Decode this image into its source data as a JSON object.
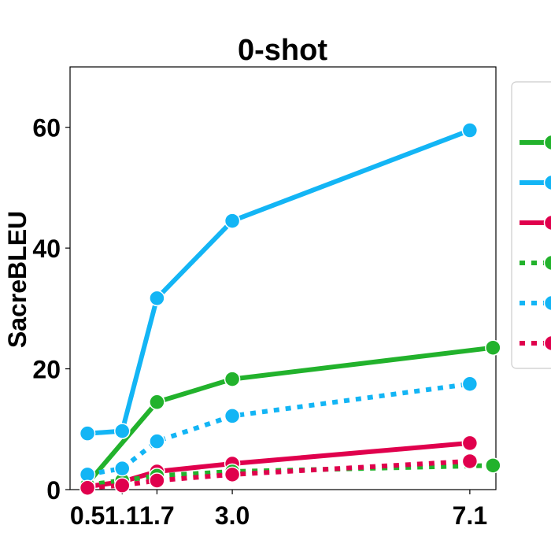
{
  "chart_data": {
    "type": "line",
    "title": "0-shot",
    "xlabel": "",
    "ylabel": "SacreBLEU",
    "xlim": [
      0.2,
      7.55
    ],
    "ylim": [
      0,
      70
    ],
    "xticks": [
      {
        "value": 0.5,
        "label": "0.5"
      },
      {
        "value": 1.1,
        "label": "1.1"
      },
      {
        "value": 1.7,
        "label": "1.7"
      },
      {
        "value": 3.0,
        "label": "3.0"
      },
      {
        "value": 7.1,
        "label": "7.1"
      }
    ],
    "yticks": [
      {
        "value": 0,
        "label": "0"
      },
      {
        "value": 20,
        "label": "20"
      },
      {
        "value": 40,
        "label": "40"
      },
      {
        "value": 60,
        "label": "60"
      }
    ],
    "grid": false,
    "legend": "right, clipped",
    "series": [
      {
        "color": "#22b22c",
        "style": "solid",
        "x": [
          0.5,
          1.7,
          3.0,
          7.5
        ],
        "y": [
          1.0,
          14.5,
          18.3,
          23.5
        ]
      },
      {
        "color": "#13b5f5",
        "style": "solid",
        "x": [
          0.5,
          1.1,
          1.7,
          3.0,
          7.1
        ],
        "y": [
          9.3,
          9.7,
          31.7,
          44.5,
          59.5
        ]
      },
      {
        "color": "#e0004d",
        "style": "solid",
        "x": [
          0.5,
          1.1,
          1.7,
          3.0,
          7.1
        ],
        "y": [
          0.5,
          1.3,
          3.0,
          4.3,
          7.7
        ]
      },
      {
        "color": "#22b22c",
        "style": "dotted",
        "x": [
          0.5,
          1.1,
          1.7,
          3.0,
          7.5
        ],
        "y": [
          0.8,
          1.5,
          2.3,
          3.0,
          4.0
        ]
      },
      {
        "color": "#13b5f5",
        "style": "dotted",
        "x": [
          0.5,
          1.1,
          1.7,
          3.0,
          7.1
        ],
        "y": [
          2.5,
          3.5,
          8.0,
          12.2,
          17.5
        ]
      },
      {
        "color": "#e0004d",
        "style": "dotted",
        "x": [
          0.5,
          1.1,
          1.7,
          3.0,
          7.1
        ],
        "y": [
          0.3,
          0.7,
          1.5,
          2.5,
          4.7
        ]
      }
    ]
  }
}
